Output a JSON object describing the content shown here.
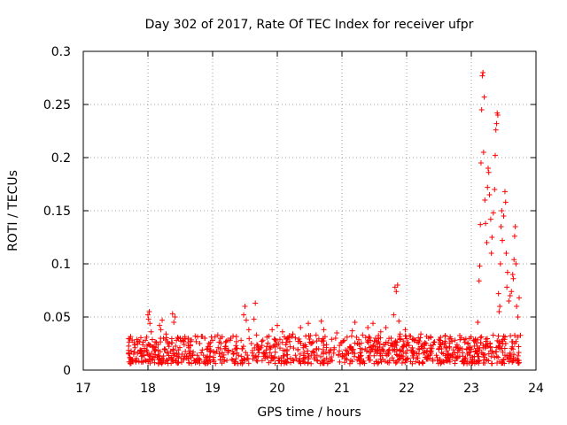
{
  "chart_data": {
    "type": "scatter",
    "title": "Day 302 of 2017, Rate Of TEC Index for receiver ufpr",
    "xlabel": "GPS time / hours",
    "ylabel": "ROTI / TECUs",
    "xlim": [
      17,
      24
    ],
    "ylim": [
      0,
      0.3
    ],
    "xticks": [
      "17",
      "18",
      "19",
      "20",
      "21",
      "22",
      "23",
      "24"
    ],
    "yticks": [
      "0",
      "0.05",
      "0.1",
      "0.15",
      "0.2",
      "0.25",
      "0.3"
    ],
    "xtick_values": [
      17,
      18,
      19,
      20,
      21,
      22,
      23,
      24
    ],
    "ytick_values": [
      0,
      0.05,
      0.1,
      0.15,
      0.2,
      0.25,
      0.3
    ],
    "grid": true,
    "marker": "+",
    "color": "#ff0000",
    "series": [
      {
        "name": "ROTI",
        "points": [
          [
            17.72,
            0.012
          ],
          [
            17.74,
            0.018
          ],
          [
            17.76,
            0.009
          ],
          [
            17.78,
            0.015
          ],
          [
            17.8,
            0.021
          ],
          [
            17.82,
            0.011
          ],
          [
            17.84,
            0.016
          ],
          [
            17.86,
            0.008
          ],
          [
            17.88,
            0.019
          ],
          [
            17.9,
            0.013
          ],
          [
            17.92,
            0.024
          ],
          [
            17.94,
            0.017
          ],
          [
            17.96,
            0.028
          ],
          [
            17.98,
            0.031
          ],
          [
            18.0,
            0.052
          ],
          [
            18.01,
            0.048
          ],
          [
            18.02,
            0.055
          ],
          [
            18.03,
            0.044
          ],
          [
            18.05,
            0.036
          ],
          [
            18.07,
            0.022
          ],
          [
            18.1,
            0.018
          ],
          [
            18.13,
            0.026
          ],
          [
            18.16,
            0.014
          ],
          [
            18.18,
            0.042
          ],
          [
            18.2,
            0.038
          ],
          [
            18.22,
            0.047
          ],
          [
            18.24,
            0.03
          ],
          [
            18.26,
            0.02
          ],
          [
            18.28,
            0.034
          ],
          [
            18.3,
            0.016
          ],
          [
            18.33,
            0.025
          ],
          [
            18.36,
            0.012
          ],
          [
            18.38,
            0.053
          ],
          [
            18.4,
            0.045
          ],
          [
            18.42,
            0.05
          ],
          [
            18.44,
            0.028
          ],
          [
            18.47,
            0.019
          ],
          [
            18.5,
            0.03
          ],
          [
            18.53,
            0.015
          ],
          [
            18.56,
            0.024
          ],
          [
            18.6,
            0.011
          ],
          [
            18.63,
            0.021
          ],
          [
            18.66,
            0.027
          ],
          [
            18.7,
            0.017
          ],
          [
            18.73,
            0.032
          ],
          [
            18.76,
            0.014
          ],
          [
            18.8,
            0.025
          ],
          [
            18.84,
            0.019
          ],
          [
            18.88,
            0.03
          ],
          [
            18.92,
            0.013
          ],
          [
            18.96,
            0.022
          ],
          [
            19.0,
            0.028
          ],
          [
            19.04,
            0.016
          ],
          [
            19.08,
            0.033
          ],
          [
            19.12,
            0.02
          ],
          [
            19.16,
            0.012
          ],
          [
            19.2,
            0.026
          ],
          [
            19.24,
            0.018
          ],
          [
            19.28,
            0.03
          ],
          [
            19.32,
            0.015
          ],
          [
            19.36,
            0.023
          ],
          [
            19.4,
            0.014
          ],
          [
            19.44,
            0.028
          ],
          [
            19.48,
            0.052
          ],
          [
            19.5,
            0.06
          ],
          [
            19.52,
            0.047
          ],
          [
            19.56,
            0.038
          ],
          [
            19.6,
            0.025
          ],
          [
            19.64,
            0.048
          ],
          [
            19.66,
            0.063
          ],
          [
            19.68,
            0.033
          ],
          [
            19.72,
            0.02
          ],
          [
            19.76,
            0.027
          ],
          [
            19.8,
            0.015
          ],
          [
            19.84,
            0.031
          ],
          [
            19.88,
            0.022
          ],
          [
            19.92,
            0.038
          ],
          [
            19.96,
            0.024
          ],
          [
            20.0,
            0.042
          ],
          [
            20.04,
            0.029
          ],
          [
            20.08,
            0.036
          ],
          [
            20.12,
            0.018
          ],
          [
            20.16,
            0.03
          ],
          [
            20.2,
            0.022
          ],
          [
            20.24,
            0.034
          ],
          [
            20.28,
            0.014
          ],
          [
            20.32,
            0.027
          ],
          [
            20.36,
            0.04
          ],
          [
            20.4,
            0.021
          ],
          [
            20.44,
            0.032
          ],
          [
            20.48,
            0.044
          ],
          [
            20.52,
            0.025
          ],
          [
            20.56,
            0.018
          ],
          [
            20.6,
            0.033
          ],
          [
            20.64,
            0.02
          ],
          [
            20.68,
            0.046
          ],
          [
            20.72,
            0.038
          ],
          [
            20.76,
            0.024
          ],
          [
            20.8,
            0.016
          ],
          [
            20.84,
            0.029
          ],
          [
            20.88,
            0.021
          ],
          [
            20.92,
            0.035
          ],
          [
            20.96,
            0.018
          ],
          [
            21.0,
            0.026
          ],
          [
            21.04,
            0.014
          ],
          [
            21.08,
            0.031
          ],
          [
            21.12,
            0.022
          ],
          [
            21.16,
            0.037
          ],
          [
            21.2,
            0.045
          ],
          [
            21.24,
            0.025
          ],
          [
            21.28,
            0.016
          ],
          [
            21.32,
            0.033
          ],
          [
            21.36,
            0.02
          ],
          [
            21.4,
            0.04
          ],
          [
            21.44,
            0.028
          ],
          [
            21.48,
            0.044
          ],
          [
            21.52,
            0.03
          ],
          [
            21.56,
            0.019
          ],
          [
            21.6,
            0.036
          ],
          [
            21.64,
            0.024
          ],
          [
            21.68,
            0.04
          ],
          [
            21.72,
            0.015
          ],
          [
            21.76,
            0.03
          ],
          [
            21.8,
            0.052
          ],
          [
            21.82,
            0.078
          ],
          [
            21.84,
            0.074
          ],
          [
            21.86,
            0.08
          ],
          [
            21.88,
            0.046
          ],
          [
            21.9,
            0.034
          ],
          [
            21.94,
            0.022
          ],
          [
            21.98,
            0.038
          ],
          [
            22.02,
            0.026
          ],
          [
            22.06,
            0.032
          ],
          [
            22.1,
            0.018
          ],
          [
            22.14,
            0.028
          ],
          [
            22.18,
            0.02
          ],
          [
            22.22,
            0.034
          ],
          [
            22.26,
            0.016
          ],
          [
            22.3,
            0.025
          ],
          [
            22.34,
            0.03
          ],
          [
            22.38,
            0.018
          ],
          [
            22.42,
            0.026
          ],
          [
            22.46,
            0.014
          ],
          [
            22.5,
            0.029
          ],
          [
            22.54,
            0.02
          ],
          [
            22.58,
            0.024
          ],
          [
            22.62,
            0.012
          ],
          [
            22.66,
            0.022
          ],
          [
            22.7,
            0.027
          ],
          [
            22.74,
            0.016
          ],
          [
            22.78,
            0.024
          ],
          [
            22.82,
            0.013
          ],
          [
            22.86,
            0.02
          ],
          [
            22.9,
            0.026
          ],
          [
            22.94,
            0.015
          ],
          [
            22.98,
            0.021
          ],
          [
            23.02,
            0.012
          ],
          [
            23.06,
            0.018
          ],
          [
            23.1,
            0.045
          ],
          [
            23.12,
            0.084
          ],
          [
            23.13,
            0.098
          ],
          [
            23.14,
            0.137
          ],
          [
            23.15,
            0.195
          ],
          [
            23.16,
            0.245
          ],
          [
            23.17,
            0.277
          ],
          [
            23.18,
            0.28
          ],
          [
            23.19,
            0.205
          ],
          [
            23.2,
            0.257
          ],
          [
            23.21,
            0.16
          ],
          [
            23.22,
            0.138
          ],
          [
            23.24,
            0.12
          ],
          [
            23.25,
            0.172
          ],
          [
            23.26,
            0.19
          ],
          [
            23.27,
            0.186
          ],
          [
            23.28,
            0.165
          ],
          [
            23.3,
            0.142
          ],
          [
            23.31,
            0.11
          ],
          [
            23.32,
            0.125
          ],
          [
            23.34,
            0.148
          ],
          [
            23.36,
            0.17
          ],
          [
            23.37,
            0.202
          ],
          [
            23.38,
            0.226
          ],
          [
            23.39,
            0.232
          ],
          [
            23.4,
            0.242
          ],
          [
            23.41,
            0.24
          ],
          [
            23.42,
            0.072
          ],
          [
            23.43,
            0.055
          ],
          [
            23.44,
            0.06
          ],
          [
            23.45,
            0.1
          ],
          [
            23.46,
            0.135
          ],
          [
            23.47,
            0.15
          ],
          [
            23.48,
            0.122
          ],
          [
            23.5,
            0.145
          ],
          [
            23.52,
            0.168
          ],
          [
            23.53,
            0.158
          ],
          [
            23.54,
            0.11
          ],
          [
            23.55,
            0.078
          ],
          [
            23.56,
            0.092
          ],
          [
            23.58,
            0.065
          ],
          [
            23.6,
            0.07
          ],
          [
            23.62,
            0.074
          ],
          [
            23.64,
            0.09
          ],
          [
            23.65,
            0.086
          ],
          [
            23.66,
            0.104
          ],
          [
            23.67,
            0.126
          ],
          [
            23.68,
            0.135
          ],
          [
            23.69,
            0.1
          ],
          [
            23.7,
            0.06
          ],
          [
            23.72,
            0.05
          ],
          [
            23.74,
            0.068
          ],
          [
            23.18,
            0.015
          ],
          [
            23.24,
            0.01
          ],
          [
            23.3,
            0.018
          ],
          [
            23.36,
            0.012
          ],
          [
            23.44,
            0.02
          ],
          [
            23.52,
            0.014
          ],
          [
            23.6,
            0.016
          ],
          [
            23.68,
            0.01
          ],
          [
            23.74,
            0.007
          ],
          [
            23.1,
            0.008
          ]
        ]
      }
    ],
    "noise_band": {
      "description": "dense low-level cluster",
      "x_range": [
        17.7,
        23.76
      ],
      "y_low": 0.006,
      "y_high": 0.033
    }
  }
}
